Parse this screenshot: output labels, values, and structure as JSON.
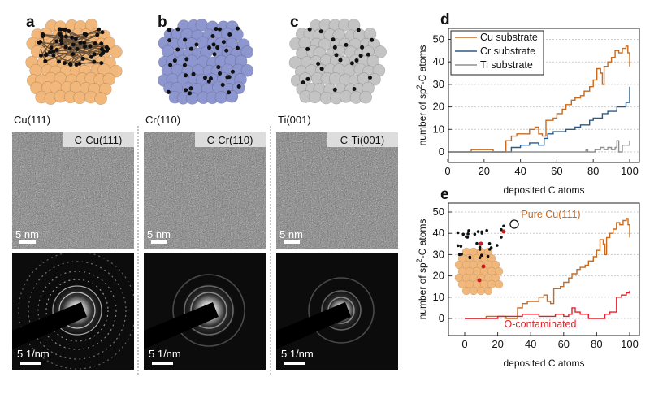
{
  "panels": [
    {
      "letter": "a",
      "substrate": "Cu(111)",
      "tem_tag": "C-Cu(111)",
      "tem_scale": "5 nm",
      "diff_scale": "5 1/nm",
      "atom_color": "#f2b77a"
    },
    {
      "letter": "b",
      "substrate": "Cr(110)",
      "tem_tag": "C-Cr(110)",
      "tem_scale": "5 nm",
      "diff_scale": "5 1/nm",
      "atom_color": "#8d96cf"
    },
    {
      "letter": "c",
      "substrate": "Ti(001)",
      "tem_tag": "C-Ti(001)",
      "tem_scale": "5 nm",
      "diff_scale": "5 1/nm",
      "atom_color": "#c4c4c4"
    }
  ],
  "chart_data": [
    {
      "panel": "d",
      "type": "line",
      "xlabel": "deposited C atoms",
      "ylabel": "number of sp2-C atoms",
      "ylabel_main": "number of sp",
      "ylabel_sup": "2",
      "ylabel_tail": "-C atoms",
      "xlim": [
        0,
        105
      ],
      "ylim": [
        -5,
        52
      ],
      "xticks": [
        "0",
        "20",
        "40",
        "60",
        "80",
        "100"
      ],
      "yticks": [
        "0",
        "10",
        "20",
        "30",
        "40",
        "50"
      ],
      "grid": true,
      "legend": "top-left",
      "series": [
        {
          "name": "Cu substrate",
          "color": "#c8691e",
          "x": [
            0,
            13,
            20,
            25,
            30,
            32,
            35,
            38,
            42,
            45,
            48,
            50,
            52,
            54,
            58,
            60,
            63,
            65,
            68,
            70,
            73,
            75,
            78,
            80,
            82,
            84,
            85,
            86,
            88,
            90,
            92,
            94,
            96,
            98,
            99,
            100
          ],
          "y": [
            0,
            1,
            1,
            0,
            0,
            5,
            7,
            8,
            8,
            10,
            11,
            8,
            7,
            14,
            15,
            17,
            19,
            21,
            23,
            24,
            25,
            27,
            29,
            32,
            37,
            35,
            30,
            38,
            40,
            42,
            45,
            44,
            46,
            47,
            44,
            38
          ]
        },
        {
          "name": "Cr substrate",
          "color": "#2b5a86",
          "x": [
            0,
            33,
            35,
            40,
            45,
            50,
            53,
            55,
            58,
            60,
            65,
            68,
            70,
            73,
            75,
            78,
            80,
            83,
            85,
            88,
            90,
            93,
            95,
            98,
            100
          ],
          "y": [
            0,
            0,
            2,
            3,
            4,
            3,
            6,
            8,
            9,
            9,
            10,
            10,
            11,
            12,
            12,
            14,
            15,
            15,
            17,
            18,
            18,
            20,
            20,
            22,
            29
          ]
        },
        {
          "name": "Ti substrate",
          "color": "#8f8f8f",
          "x": [
            0,
            76,
            77,
            80,
            81,
            84,
            86,
            88,
            90,
            92,
            93,
            94,
            96,
            98,
            100
          ],
          "y": [
            0,
            1,
            0,
            0,
            1,
            2,
            1,
            2,
            1,
            2,
            5,
            0,
            3,
            3,
            5
          ]
        }
      ]
    },
    {
      "panel": "e",
      "type": "line",
      "xlabel": "deposited C atoms",
      "ylabel": "number of sp2-C atoms",
      "ylabel_main": "number of sp",
      "ylabel_sup": "2",
      "ylabel_tail": "-C atoms",
      "xlim": [
        -8,
        105
      ],
      "ylim": [
        -8,
        52
      ],
      "xticks": [
        "0",
        "20",
        "40",
        "60",
        "80",
        "100"
      ],
      "yticks": [
        "0",
        "10",
        "20",
        "30",
        "40",
        "50"
      ],
      "grid": true,
      "annotations": [
        "Pure Cu(111)",
        "O-contaminated"
      ],
      "inset_label": "O",
      "series": [
        {
          "name": "Pure Cu(111)",
          "color": "#c8691e",
          "x": [
            0,
            13,
            20,
            25,
            30,
            32,
            35,
            38,
            42,
            45,
            48,
            50,
            52,
            54,
            58,
            60,
            63,
            65,
            68,
            70,
            73,
            75,
            78,
            80,
            82,
            84,
            85,
            86,
            88,
            90,
            92,
            94,
            96,
            98,
            99,
            100
          ],
          "y": [
            0,
            1,
            1,
            0,
            0,
            5,
            7,
            8,
            8,
            10,
            11,
            8,
            7,
            14,
            15,
            17,
            19,
            21,
            23,
            24,
            25,
            27,
            29,
            32,
            37,
            35,
            30,
            38,
            40,
            42,
            45,
            44,
            46,
            47,
            44,
            38
          ]
        },
        {
          "name": "O-contaminated",
          "color": "#e0202a",
          "x": [
            0,
            15,
            20,
            25,
            30,
            35,
            40,
            45,
            50,
            55,
            60,
            63,
            65,
            67,
            70,
            75,
            80,
            85,
            88,
            90,
            92,
            95,
            98,
            100
          ],
          "y": [
            0,
            0,
            1,
            1,
            1,
            2,
            2,
            1,
            1,
            2,
            1,
            2,
            5,
            3,
            2,
            0,
            0,
            2,
            3,
            3,
            10,
            11,
            12,
            13
          ]
        }
      ]
    }
  ]
}
